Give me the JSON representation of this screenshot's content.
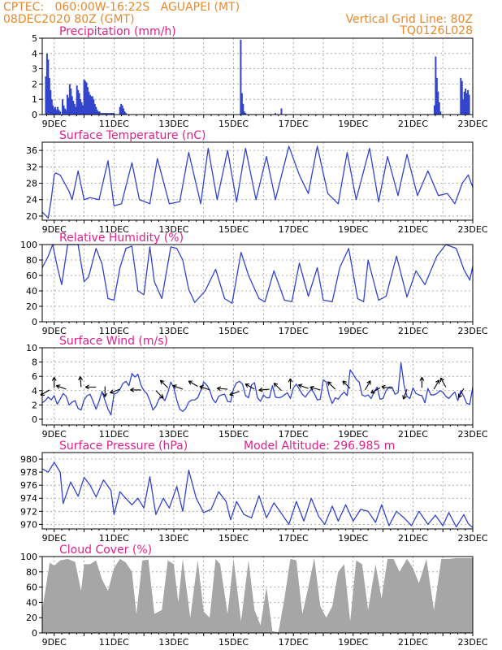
{
  "header": {
    "left1": "CPTEC:   060:00W-16:22S   AGUAPEI (MT)",
    "left2": "08DEC2020 80Z (GMT)",
    "right1": "Vertical Grid Line: 80Z",
    "right2": "TQ0126L028"
  },
  "x_ticks": [
    "9DEC",
    "11DEC",
    "13DEC",
    "15DEC",
    "17DEC",
    "19DEC",
    "21DEC",
    "23DEC"
  ],
  "colors": {
    "line": "#3344cc",
    "title": "#e0218a",
    "header": "#e8892b",
    "cloud": "#a6a6a6",
    "grid": "#999999"
  },
  "chart_data": [
    {
      "type": "bar",
      "title": "Precipitation (mm/h)",
      "ylim": [
        0,
        5
      ],
      "yticks": [
        "0",
        "1",
        "2",
        "3",
        "4",
        "5"
      ],
      "x_day_range": [
        8.6,
        23.0
      ],
      "x": [
        8.72,
        8.76,
        8.8,
        8.84,
        8.88,
        8.92,
        8.96,
        9.0,
        9.04,
        9.08,
        9.12,
        9.16,
        9.2,
        9.28,
        9.32,
        9.36,
        9.4,
        9.44,
        9.48,
        9.52,
        9.56,
        9.6,
        9.64,
        9.68,
        9.72,
        9.76,
        9.8,
        9.84,
        9.88,
        9.92,
        9.96,
        10.0,
        10.04,
        10.08,
        10.12,
        10.16,
        10.2,
        10.24,
        10.28,
        10.32,
        10.36,
        10.4,
        10.44,
        10.48,
        10.52,
        10.56,
        10.6,
        10.64,
        10.68,
        10.72,
        10.76,
        10.8,
        10.84,
        10.88,
        10.92,
        10.96,
        11.0,
        11.2,
        11.24,
        11.28,
        11.32,
        11.36,
        11.4,
        15.24,
        15.28,
        15.32,
        15.36,
        15.4,
        16.4,
        16.6,
        21.72,
        21.76,
        21.8,
        21.84,
        21.88,
        21.92,
        22.6,
        22.64,
        22.68,
        22.72,
        22.76,
        22.8,
        22.84,
        22.88
      ],
      "values": [
        2.5,
        4.0,
        3.6,
        2.4,
        1.6,
        1.0,
        0.6,
        0.4,
        0.5,
        0.3,
        0.5,
        0.3,
        0.2,
        1.0,
        0.6,
        0.4,
        0.3,
        1.3,
        1.1,
        2.0,
        1.7,
        1.2,
        0.9,
        0.7,
        0.5,
        1.9,
        1.6,
        1.4,
        1.0,
        0.8,
        0.6,
        2.3,
        2.2,
        2.1,
        1.8,
        1.5,
        1.3,
        1.2,
        1.2,
        1.0,
        0.7,
        0.5,
        0.3,
        0.2,
        0.2,
        0.1,
        0.1,
        0.1,
        0.1,
        0.1,
        0.1,
        0.1,
        0.1,
        0.1,
        0.1,
        0.1,
        0.1,
        0.5,
        0.7,
        0.6,
        0.4,
        0.2,
        0.1,
        4.9,
        1.4,
        0.7,
        0.2,
        0.1,
        0.1,
        0.4,
        0.6,
        3.8,
        2.4,
        1.5,
        0.8,
        0.2,
        2.4,
        2.2,
        1.0,
        1.5,
        1.7,
        1.4,
        1.6,
        1.3
      ]
    },
    {
      "type": "line",
      "title": "Surface Temperature (nC)",
      "ylim": [
        19,
        38
      ],
      "yticks": [
        "20",
        "24",
        "28",
        "32",
        "36"
      ],
      "x": [
        8.6,
        8.8,
        8.9,
        9.0,
        9.05,
        9.2,
        9.35,
        9.5,
        9.6,
        9.8,
        10.0,
        10.2,
        10.5,
        10.8,
        11.0,
        11.25,
        11.6,
        11.85,
        12.2,
        12.45,
        12.85,
        13.2,
        13.5,
        13.9,
        14.15,
        14.45,
        14.8,
        15.1,
        15.4,
        15.75,
        16.1,
        16.4,
        16.85,
        17.2,
        17.5,
        17.8,
        18.15,
        18.5,
        18.8,
        19.1,
        19.55,
        19.85,
        20.15,
        20.5,
        20.8,
        21.15,
        21.5,
        21.85,
        22.15,
        22.4,
        22.65,
        22.85,
        23.0
      ],
      "values": [
        21,
        19.5,
        24,
        30,
        30.5,
        30,
        28,
        26,
        24,
        31,
        24,
        24.5,
        24,
        33.5,
        22.5,
        23,
        33,
        24,
        23,
        34,
        23,
        23.5,
        35.5,
        23,
        36.5,
        24,
        36,
        23.5,
        36.5,
        24,
        34.5,
        24,
        37,
        30,
        25.5,
        37,
        25.5,
        23,
        35.5,
        24,
        36.5,
        23.5,
        34.5,
        25,
        35,
        25,
        31,
        25,
        25.5,
        23,
        28,
        30,
        27
      ]
    },
    {
      "type": "line",
      "title": "Relative Humidity (%)",
      "ylim": [
        0,
        100
      ],
      "yticks": [
        "0",
        "20",
        "40",
        "60",
        "80",
        "100"
      ],
      "x": [
        8.6,
        8.8,
        8.95,
        9.1,
        9.25,
        9.45,
        9.65,
        9.8,
        10.0,
        10.15,
        10.4,
        10.6,
        10.8,
        11.0,
        11.2,
        11.4,
        11.6,
        11.8,
        12.0,
        12.2,
        12.35,
        12.6,
        12.9,
        13.1,
        13.3,
        13.5,
        13.7,
        14.05,
        14.4,
        14.7,
        14.95,
        15.25,
        15.5,
        15.85,
        16.05,
        16.35,
        16.7,
        16.95,
        17.2,
        17.5,
        17.8,
        18.0,
        18.3,
        18.55,
        18.85,
        19.15,
        19.35,
        19.5,
        19.85,
        20.1,
        20.45,
        20.8,
        21.1,
        21.4,
        21.8,
        22.1,
        22.45,
        22.7,
        22.9,
        23.0
      ],
      "values": [
        70,
        85,
        100,
        72,
        48,
        100,
        100,
        100,
        52,
        58,
        95,
        75,
        30,
        28,
        70,
        95,
        98,
        40,
        35,
        97,
        52,
        30,
        97,
        95,
        80,
        42,
        25,
        40,
        68,
        30,
        24,
        90,
        60,
        30,
        26,
        66,
        28,
        26,
        76,
        33,
        70,
        28,
        26,
        70,
        95,
        30,
        26,
        80,
        28,
        33,
        85,
        32,
        66,
        48,
        85,
        100,
        95,
        68,
        54,
        72
      ]
    },
    {
      "type": "line",
      "title": "Surface Wind (m/s)",
      "ylim": [
        -0.8,
        10
      ],
      "yticks": [
        "0",
        "2",
        "4",
        "6",
        "8",
        "10"
      ],
      "x": [
        8.6,
        8.7,
        8.8,
        8.9,
        9.0,
        9.1,
        9.2,
        9.3,
        9.4,
        9.5,
        9.6,
        9.7,
        9.8,
        9.9,
        10.0,
        10.1,
        10.2,
        10.3,
        10.4,
        10.5,
        10.6,
        10.7,
        10.8,
        10.9,
        11.0,
        11.1,
        11.2,
        11.3,
        11.4,
        11.5,
        11.6,
        11.7,
        11.8,
        11.9,
        12.0,
        12.1,
        12.2,
        12.3,
        12.4,
        12.5,
        12.6,
        12.7,
        12.8,
        12.9,
        13.0,
        13.1,
        13.2,
        13.3,
        13.4,
        13.5,
        13.6,
        13.7,
        13.8,
        13.9,
        14.0,
        14.1,
        14.2,
        14.3,
        14.4,
        14.5,
        14.6,
        14.7,
        14.8,
        14.9,
        15.0,
        15.1,
        15.2,
        15.3,
        15.4,
        15.5,
        15.6,
        15.7,
        15.8,
        15.9,
        16.0,
        16.1,
        16.2,
        16.3,
        16.4,
        16.5,
        16.6,
        16.7,
        16.8,
        16.9,
        17.0,
        17.1,
        17.2,
        17.3,
        17.4,
        17.5,
        17.6,
        17.7,
        17.8,
        17.9,
        18.0,
        18.1,
        18.2,
        18.3,
        18.4,
        18.5,
        18.6,
        18.7,
        18.8,
        18.9,
        19.0,
        19.1,
        19.2,
        19.3,
        19.4,
        19.5,
        19.6,
        19.7,
        19.8,
        19.9,
        20.0,
        20.1,
        20.2,
        20.3,
        20.4,
        20.5,
        20.6,
        20.7,
        20.8,
        20.9,
        21.0,
        21.1,
        21.2,
        21.3,
        21.4,
        21.5,
        21.6,
        21.7,
        21.8,
        21.9,
        22.0,
        22.1,
        22.2,
        22.3,
        22.4,
        22.5,
        22.6,
        22.7,
        22.8,
        22.9,
        23.0
      ],
      "values": [
        2.3,
        2.6,
        3.1,
        2.7,
        3.3,
        2.1,
        2.8,
        3.6,
        3.2,
        2.0,
        2.4,
        2.6,
        1.5,
        1.3,
        2.7,
        3.3,
        3.5,
        2.5,
        1.4,
        2.5,
        3.9,
        2.6,
        1.4,
        0.6,
        3.5,
        3.7,
        4.2,
        5.0,
        5.3,
        4.7,
        6.4,
        5.9,
        6.3,
        4.8,
        4.0,
        3.6,
        2.6,
        1.3,
        1.8,
        2.8,
        3.1,
        2.6,
        3.7,
        5.2,
        4.4,
        2.7,
        1.4,
        1.1,
        1.5,
        2.4,
        2.7,
        2.7,
        3.0,
        4.0,
        5.2,
        4.8,
        4.1,
        2.8,
        2.3,
        3.2,
        3.4,
        3.5,
        2.5,
        2.4,
        4.3,
        5.1,
        5.3,
        4.9,
        3.3,
        3.0,
        4.8,
        5.1,
        3.0,
        2.5,
        3.4,
        3.0,
        3.0,
        4.7,
        3.1,
        3.0,
        3.1,
        3.4,
        3.7,
        2.9,
        4.4,
        4.9,
        4.2,
        3.5,
        3.1,
        3.7,
        4.2,
        3.6,
        2.7,
        2.8,
        5.5,
        5.2,
        3.3,
        2.2,
        3.0,
        2.8,
        3.4,
        3.8,
        3.3,
        6.9,
        6.3,
        5.6,
        5.2,
        3.4,
        3.2,
        3.4,
        2.9,
        3.8,
        4.5,
        2.8,
        2.9,
        4.0,
        4.5,
        4.5,
        3.5,
        3.7,
        7.9,
        4.8,
        3.2,
        2.9,
        4.4,
        3.6,
        3.4,
        3.3,
        2.3,
        4.3,
        3.4,
        3.4,
        3.6,
        4.0,
        3.8,
        3.2,
        2.9,
        3.4,
        3.8,
        2.6,
        4.0,
        3.2,
        2.2,
        2.1,
        4.5
      ],
      "arrows_x": [
        8.85,
        9.0,
        9.4,
        9.9,
        10.4,
        10.7,
        11.2,
        11.9,
        12.4,
        12.8,
        13.3,
        13.8,
        14.2,
        14.8,
        15.2,
        15.7,
        16.2,
        16.6,
        16.9,
        17.5,
        17.9,
        18.4,
        18.9,
        19.4,
        19.9,
        20.3,
        20.8,
        21.3,
        21.7,
        22.1,
        22.7
      ],
      "arrows_y": [
        4.1,
        4.4,
        4.2,
        4.5,
        4.5,
        4.6,
        4.2,
        4.1,
        4.0,
        4.4,
        4.2,
        4.6,
        4.1,
        4.2,
        3.9,
        4.2,
        4.2,
        4.0,
        4.2,
        4.3,
        4.1,
        4.2,
        4.3,
        4.1,
        4.4,
        4.3,
        4.2,
        4.4,
        4.2,
        4.5,
        4.3
      ],
      "arrows_dir": [
        150,
        270,
        200,
        265,
        180,
        90,
        160,
        180,
        45,
        225,
        200,
        210,
        200,
        185,
        160,
        210,
        175,
        225,
        270,
        200,
        195,
        225,
        225,
        300,
        150,
        190,
        110,
        270,
        300,
        240,
        120
      ]
    },
    {
      "type": "line",
      "title": "Surface Pressure (hPa)",
      "subtitle": "Model Altitude: 296.985 m",
      "ylim": [
        969.3,
        981
      ],
      "yticks": [
        "970",
        "972",
        "974",
        "976",
        "978",
        "980"
      ],
      "x": [
        8.6,
        8.8,
        9.0,
        9.2,
        9.3,
        9.55,
        9.8,
        10.0,
        10.2,
        10.4,
        10.65,
        10.9,
        11.0,
        11.2,
        11.35,
        11.6,
        11.8,
        12.0,
        12.2,
        12.4,
        12.65,
        12.85,
        13.1,
        13.3,
        13.5,
        13.75,
        14.0,
        14.25,
        14.5,
        14.75,
        14.9,
        15.1,
        15.35,
        15.6,
        15.85,
        16.1,
        16.35,
        16.55,
        16.85,
        17.1,
        17.35,
        17.6,
        17.85,
        18.05,
        18.3,
        18.5,
        18.75,
        19.0,
        19.25,
        19.5,
        19.75,
        19.95,
        20.2,
        20.45,
        20.7,
        20.95,
        21.2,
        21.5,
        21.75,
        22.0,
        22.2,
        22.45,
        22.7,
        22.85,
        23.0
      ],
      "values": [
        978.5,
        978.0,
        979.5,
        978.0,
        973.2,
        976.5,
        974.3,
        977.2,
        976.0,
        974.2,
        976.8,
        975.2,
        971.5,
        975.0,
        974.2,
        973.0,
        974.0,
        972.5,
        977.3,
        971.5,
        974.0,
        972.5,
        975.8,
        972.0,
        978.3,
        974.0,
        971.8,
        972.3,
        975.0,
        973.5,
        970.7,
        973.5,
        971.5,
        971.0,
        974.4,
        971.0,
        973.3,
        972.0,
        970.0,
        973.5,
        970.5,
        974.0,
        971.2,
        970.0,
        972.8,
        970.5,
        973.0,
        970.5,
        972.3,
        972.0,
        970.3,
        973.0,
        969.8,
        972.0,
        971.0,
        969.8,
        972.0,
        970.0,
        971.4,
        969.8,
        971.8,
        969.6,
        971.5,
        970.1,
        969.5
      ]
    },
    {
      "type": "area",
      "title": "Cloud Cover (%)",
      "ylim": [
        0,
        100
      ],
      "yticks": [
        "0",
        "20",
        "40",
        "60",
        "80",
        "100"
      ],
      "x": [
        8.6,
        8.85,
        9.0,
        9.2,
        9.45,
        9.7,
        9.9,
        10.0,
        10.2,
        10.4,
        10.6,
        10.8,
        11.0,
        11.2,
        11.4,
        11.6,
        11.75,
        11.95,
        12.15,
        12.35,
        12.6,
        12.8,
        13.0,
        13.15,
        13.3,
        13.55,
        13.8,
        14.0,
        14.2,
        14.4,
        14.55,
        14.8,
        15.0,
        15.25,
        15.5,
        15.7,
        15.9,
        16.1,
        16.3,
        16.5,
        16.7,
        16.9,
        17.1,
        17.3,
        17.5,
        17.7,
        17.9,
        18.1,
        18.3,
        18.5,
        18.7,
        18.9,
        19.1,
        19.3,
        19.5,
        19.75,
        19.95,
        20.15,
        20.35,
        20.55,
        20.8,
        21.0,
        21.2,
        21.45,
        21.7,
        21.95,
        22.2,
        22.45,
        22.7,
        23.0
      ],
      "values": [
        30,
        92,
        88,
        95,
        97,
        93,
        55,
        90,
        90,
        95,
        70,
        55,
        85,
        97,
        92,
        80,
        25,
        95,
        96,
        25,
        30,
        95,
        90,
        40,
        97,
        20,
        95,
        28,
        20,
        97,
        90,
        25,
        97,
        15,
        95,
        30,
        10,
        60,
        2,
        1,
        45,
        97,
        95,
        25,
        60,
        98,
        35,
        20,
        35,
        80,
        90,
        15,
        95,
        90,
        30,
        90,
        45,
        97,
        97,
        80,
        97,
        85,
        65,
        97,
        30,
        97,
        97,
        98,
        98,
        98
      ]
    }
  ]
}
